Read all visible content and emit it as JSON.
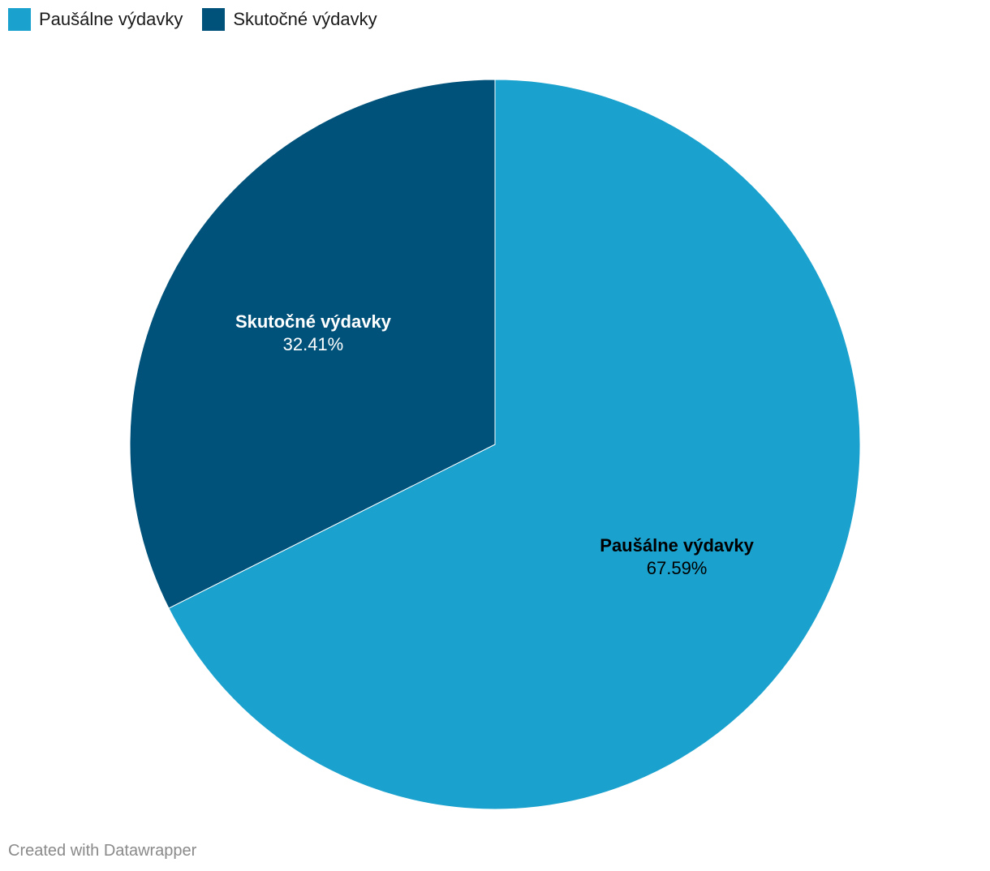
{
  "chart_data": {
    "type": "pie",
    "categories": [
      "Paušálne výdavky",
      "Skutočné výdavky"
    ],
    "values": [
      67.59,
      32.41
    ],
    "value_labels": [
      "67.59%",
      "32.41%"
    ],
    "colors": [
      "#1aa1cd",
      "#00527a"
    ],
    "label_colors": [
      "#000000",
      "#ffffff"
    ],
    "unit": "%",
    "legend_position": "top-left"
  },
  "legend": {
    "items": [
      {
        "label": "Paušálne výdavky",
        "color": "#1aa1cd"
      },
      {
        "label": "Skutočné výdavky",
        "color": "#00527a"
      }
    ]
  },
  "footer": {
    "credit": "Created with Datawrapper"
  }
}
